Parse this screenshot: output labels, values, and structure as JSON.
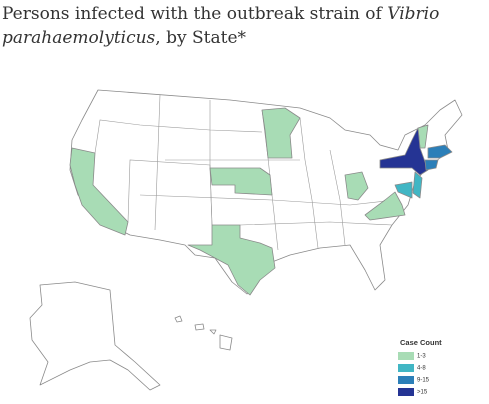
{
  "title": {
    "before": "Persons infected with the outbreak strain of ",
    "italic": "Vibrio parahaemolyticus",
    "after": ", by State*"
  },
  "legend": {
    "title": "Case Count",
    "items": [
      {
        "label": "1-3",
        "color": "#a8dcb5"
      },
      {
        "label": "4-8",
        "color": "#41b6c4"
      },
      {
        "label": "9-15",
        "color": "#2c7fb8"
      },
      {
        "label": ">15",
        "color": "#253494"
      }
    ]
  }
}
